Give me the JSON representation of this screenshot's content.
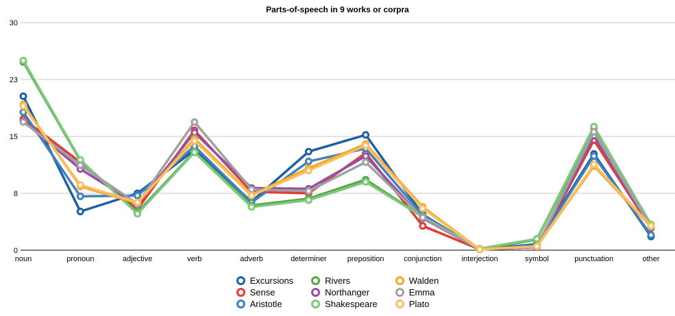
{
  "chart_data": {
    "type": "line",
    "title": "Parts-of-speech in 9 works or corpra",
    "categories": [
      "noun",
      "pronoun",
      "adjective",
      "verb",
      "adverb",
      "determiner",
      "preposition",
      "conjunction",
      "interjection",
      "symbol",
      "punctuation",
      "other"
    ],
    "xlabel": "",
    "ylabel": "",
    "ylim": [
      0,
      30
    ],
    "grid": true,
    "legend_position": "bottom-center",
    "marker": "ring",
    "axis_color": "#000000",
    "gridline_color": "#c9c9c9",
    "y_ticks": [
      {
        "label": "0",
        "value": 0
      },
      {
        "label": "8",
        "value": 7.5
      },
      {
        "label": "15",
        "value": 15
      },
      {
        "label": "23",
        "value": 22.5
      },
      {
        "label": "30",
        "value": 30
      }
    ],
    "series": [
      {
        "name": "Excursions",
        "color": "#1d5fa7",
        "values": [
          20.3,
          5.1,
          7.5,
          13.2,
          6.4,
          13.0,
          15.2,
          4.7,
          0.1,
          0.8,
          12.7,
          1.8
        ]
      },
      {
        "name": "Sense",
        "color": "#e23b36",
        "values": [
          17.3,
          11.6,
          5.4,
          15.8,
          7.7,
          7.5,
          12.8,
          3.2,
          0.1,
          0.4,
          14.5,
          2.9
        ]
      },
      {
        "name": "Aristotle",
        "color": "#4180bd",
        "values": [
          18.2,
          7.1,
          7.2,
          13.7,
          6.3,
          11.7,
          13.4,
          4.6,
          0.1,
          0.7,
          12.4,
          2.0
        ]
      },
      {
        "name": "Rivers",
        "color": "#55a546",
        "values": [
          24.8,
          11.8,
          5.0,
          13.0,
          5.9,
          6.8,
          9.3,
          4.4,
          0.1,
          1.4,
          16.1,
          3.3
        ]
      },
      {
        "name": "Northanger",
        "color": "#9351a5",
        "values": [
          17.0,
          10.7,
          6.0,
          15.5,
          8.2,
          8.1,
          12.4,
          4.2,
          0.1,
          0.4,
          15.1,
          3.0
        ]
      },
      {
        "name": "Shakespeare",
        "color": "#7dc87b",
        "values": [
          25.0,
          11.9,
          4.8,
          12.9,
          5.7,
          6.6,
          9.0,
          4.4,
          0.2,
          1.5,
          16.3,
          3.4
        ]
      },
      {
        "name": "Walden",
        "color": "#f4a427",
        "values": [
          19.2,
          8.4,
          6.2,
          14.7,
          7.3,
          10.8,
          14.0,
          5.7,
          0.1,
          0.5,
          11.1,
          3.1
        ]
      },
      {
        "name": "Emma",
        "color": "#a0a0a0",
        "values": [
          16.9,
          11.2,
          6.1,
          16.9,
          8.0,
          7.8,
          11.6,
          4.3,
          0.1,
          0.5,
          15.6,
          3.1
        ]
      },
      {
        "name": "Plato",
        "color": "#f8c05e",
        "values": [
          19.0,
          8.6,
          6.3,
          14.4,
          7.2,
          10.5,
          13.8,
          5.5,
          0.1,
          0.5,
          11.3,
          3.2
        ]
      }
    ]
  }
}
